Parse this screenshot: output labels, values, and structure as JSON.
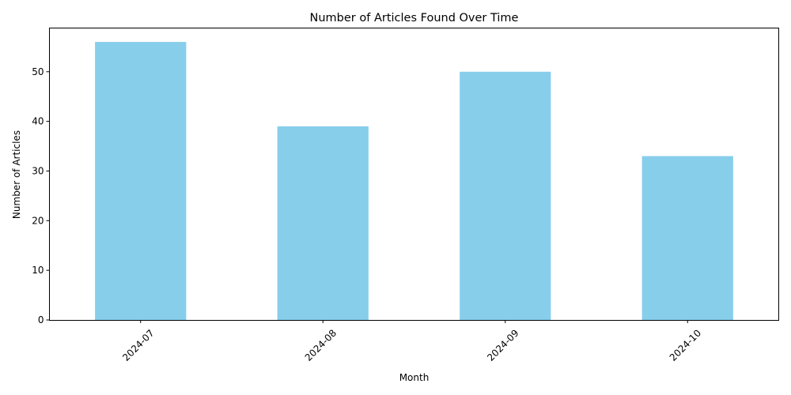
{
  "chart_data": {
    "type": "bar",
    "title": "Number of Articles Found Over Time",
    "xlabel": "Month",
    "ylabel": "Number of Articles",
    "categories": [
      "2024-07",
      "2024-08",
      "2024-09",
      "2024-10"
    ],
    "values": [
      56,
      39,
      50,
      33
    ],
    "ylim": [
      0,
      58.8
    ],
    "yticks": [
      0,
      10,
      20,
      30,
      40,
      50
    ],
    "bar_color": "#87CEEB",
    "grid": false,
    "legend": "none",
    "xtick_rotation": 45
  }
}
